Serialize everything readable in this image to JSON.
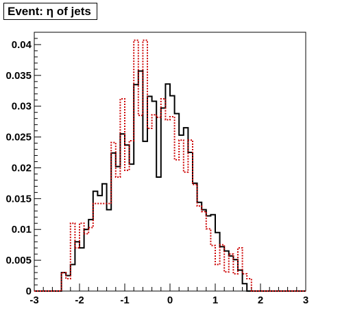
{
  "chart_data": {
    "type": "line",
    "title": "Event: η of jets",
    "xlabel": "",
    "ylabel": "",
    "xlim": [
      -3,
      3
    ],
    "ylim": [
      0,
      0.042
    ],
    "x_ticks": [
      "-3",
      "-2",
      "-1",
      "0",
      "1",
      "2",
      "3"
    ],
    "y_ticks": [
      "0",
      "0.005",
      "0.01",
      "0.015",
      "0.02",
      "0.025",
      "0.03",
      "0.035",
      "0.04"
    ],
    "bin_edges_range": [
      -3.0,
      3.0
    ],
    "bin_width": 0.1,
    "grid": false,
    "legend": "none",
    "series": [
      {
        "style": "solid",
        "color": "#000000",
        "values": [
          0,
          0,
          0,
          0,
          0,
          0,
          0.003,
          0.0025,
          0.0043,
          0.008,
          0.007,
          0.01,
          0.0116,
          0.0162,
          0.0155,
          0.0174,
          0.0132,
          0.0224,
          0.0202,
          0.0255,
          0.0237,
          0.0206,
          0.0335,
          0.0357,
          0.0243,
          0.0316,
          0.0308,
          0.0185,
          0.0297,
          0.0336,
          0.0317,
          0.0288,
          0.0253,
          0.0265,
          0.0225,
          0.0175,
          0.0144,
          0.0132,
          0.0122,
          0.0124,
          0.0095,
          0.0072,
          0.0065,
          0.0057,
          0.0051,
          0.0034,
          0.0012,
          0,
          0,
          0,
          0,
          0,
          0,
          0,
          0,
          0,
          0,
          0,
          0,
          0
        ]
      },
      {
        "style": "dotted",
        "color": "#cc0000",
        "values": [
          0,
          0,
          0,
          0,
          0,
          0,
          0.003,
          0.002,
          0.011,
          0.007,
          0.011,
          0.0093,
          0.0103,
          0.0142,
          0.0142,
          0.0142,
          0.0142,
          0.0241,
          0.0185,
          0.0312,
          0.0196,
          0.0244,
          0.0407,
          0.0285,
          0.0407,
          0.0264,
          0.0286,
          0.0282,
          0.0312,
          0.0278,
          0.0283,
          0.0213,
          0.0245,
          0.0193,
          0.0245,
          0.0173,
          0.0138,
          0.0129,
          0.0101,
          0.0074,
          0.0043,
          0.0075,
          0.0031,
          0.006,
          0.0028,
          0.007,
          0.0028,
          0.002,
          0,
          0,
          0,
          0,
          0,
          0,
          0,
          0,
          0,
          0,
          0,
          0
        ]
      }
    ]
  }
}
